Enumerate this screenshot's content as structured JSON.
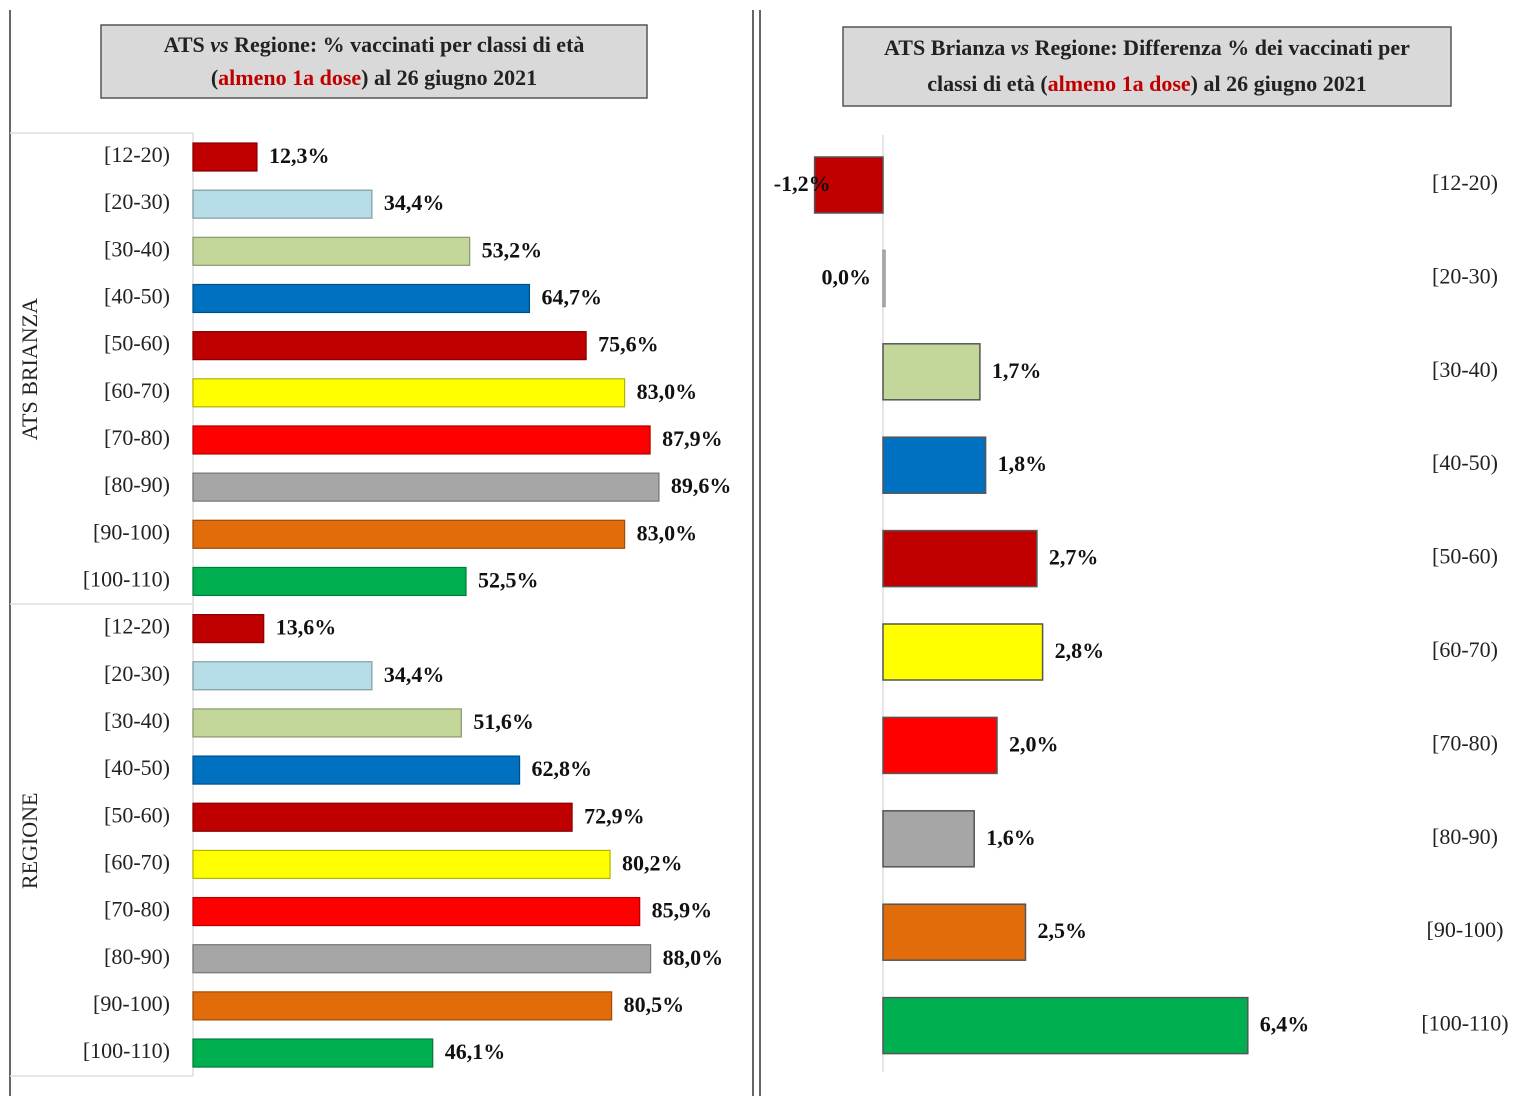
{
  "chart_data": [
    {
      "type": "grouped-hbar",
      "title_lines": [
        [
          {
            "text": "ATS "
          },
          {
            "text": "vs",
            "italic": true
          },
          {
            "text": " Regione: % vaccinati per classi di età"
          }
        ],
        [
          {
            "text": "("
          },
          {
            "text": "almeno 1a dose",
            "color": "#c00000"
          },
          {
            "text": ") al 26 giugno 2021"
          }
        ]
      ],
      "categories": [
        "[12-20)",
        "[20-30)",
        "[30-40)",
        "[40-50)",
        "[50-60)",
        "[60-70)",
        "[70-80)",
        "[80-90)",
        "[90-100)",
        "[100-110)"
      ],
      "colors": [
        "#c00000",
        "#b7dde8",
        "#c4d79b",
        "#0070c0",
        "#c00000",
        "#ffff00",
        "#ff0000",
        "#a6a6a6",
        "#e26b0a",
        "#00b050"
      ],
      "series": [
        {
          "name": "ATS BRIANZA",
          "values": [
            12.3,
            34.4,
            53.2,
            64.7,
            75.6,
            83.0,
            87.9,
            89.6,
            83.0,
            52.5
          ],
          "value_labels": [
            "12,3%",
            "34,4%",
            "53,2%",
            "64,7%",
            "75,6%",
            "83,0%",
            "87,9%",
            "89,6%",
            "83,0%",
            "52,5%"
          ]
        },
        {
          "name": "REGIONE",
          "values": [
            13.6,
            34.4,
            51.6,
            62.8,
            72.9,
            80.2,
            85.9,
            88.0,
            80.5,
            46.1
          ],
          "value_labels": [
            "13,6%",
            "34,4%",
            "51,6%",
            "62,8%",
            "72,9%",
            "80,2%",
            "85,9%",
            "88,0%",
            "80,5%",
            "46,1%"
          ]
        }
      ]
    },
    {
      "type": "diverging-hbar",
      "title_lines": [
        [
          {
            "text": "ATS Brianza "
          },
          {
            "text": "vs",
            "italic": true
          },
          {
            "text": " Regione: Differenza % dei vaccinati per"
          }
        ],
        [
          {
            "text": "classi di età ("
          },
          {
            "text": "almeno 1a dose",
            "color": "#c00000"
          },
          {
            "text": ") al 26 giugno 2021"
          }
        ]
      ],
      "categories": [
        "[12-20)",
        "[20-30)",
        "[30-40)",
        "[40-50)",
        "[50-60)",
        "[60-70)",
        "[70-80)",
        "[80-90)",
        "[90-100)",
        "[100-110)"
      ],
      "colors": [
        "#c00000",
        "#b7dde8",
        "#c4d79b",
        "#0070c0",
        "#c00000",
        "#ffff00",
        "#ff0000",
        "#a6a6a6",
        "#e26b0a",
        "#00b050"
      ],
      "values": [
        -1.2,
        0.0,
        1.7,
        1.8,
        2.7,
        2.8,
        2.0,
        1.6,
        2.5,
        6.4
      ],
      "value_labels": [
        "-1,2%",
        "0,0%",
        "1,7%",
        "1,8%",
        "2,7%",
        "2,8%",
        "2,0%",
        "1,6%",
        "2,5%",
        "6,4%"
      ]
    }
  ]
}
